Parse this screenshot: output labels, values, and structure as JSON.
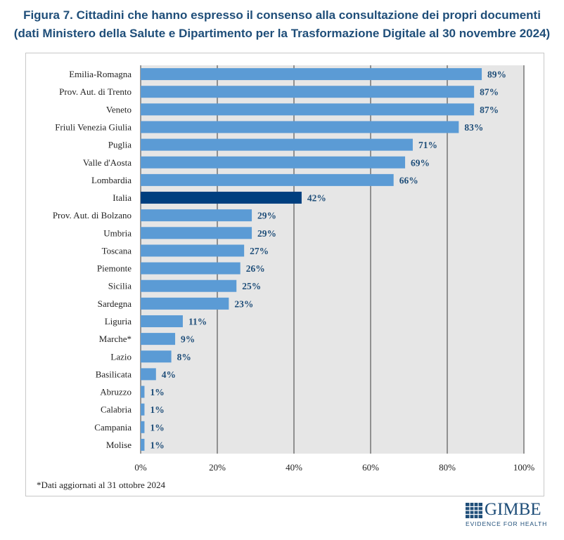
{
  "header": {
    "title_line1": "Figura 7. Cittadini che hanno espresso il consenso alla consultazione dei propri documenti",
    "title_line2": "(dati Ministero della Salute e Dipartimento per la Trasformazione Digitale al 30 novembre 2024)"
  },
  "footnote": "*Dati aggiornati al 31 ottobre 2024",
  "logo": {
    "word": "GIMBE",
    "subtitle": "EVIDENCE FOR HEALTH"
  },
  "colors": {
    "bar": "#5b9bd5",
    "highlight": "#003f7f",
    "label": "#1f4e79",
    "plot_bg": "#e6e6e6",
    "title": "#1f4e79"
  },
  "chart_data": {
    "type": "bar",
    "orientation": "horizontal",
    "categories": [
      "Emilia-Romagna",
      "Prov. Aut. di Trento",
      "Veneto",
      "Friuli Venezia Giulia",
      "Puglia",
      "Valle d'Aosta",
      "Lombardia",
      "Italia",
      "Prov. Aut. di Bolzano",
      "Umbria",
      "Toscana",
      "Piemonte",
      "Sicilia",
      "Sardegna",
      "Liguria",
      "Marche*",
      "Lazio",
      "Basilicata",
      "Abruzzo",
      "Calabria",
      "Campania",
      "Molise"
    ],
    "values": [
      89,
      87,
      87,
      83,
      71,
      69,
      66,
      42,
      29,
      29,
      27,
      26,
      25,
      23,
      11,
      9,
      8,
      4,
      1,
      1,
      1,
      1
    ],
    "value_labels": [
      "89%",
      "87%",
      "87%",
      "83%",
      "71%",
      "69%",
      "66%",
      "42%",
      "29%",
      "29%",
      "27%",
      "26%",
      "25%",
      "23%",
      "11%",
      "9%",
      "8%",
      "4%",
      "1%",
      "1%",
      "1%",
      "1%"
    ],
    "highlight_category": "Italia",
    "xlim": [
      0,
      100
    ],
    "xticks": [
      0,
      20,
      40,
      60,
      80,
      100
    ],
    "xtick_labels": [
      "0%",
      "20%",
      "40%",
      "60%",
      "80%",
      "100%"
    ],
    "grid": "vertical",
    "legend": "none"
  }
}
